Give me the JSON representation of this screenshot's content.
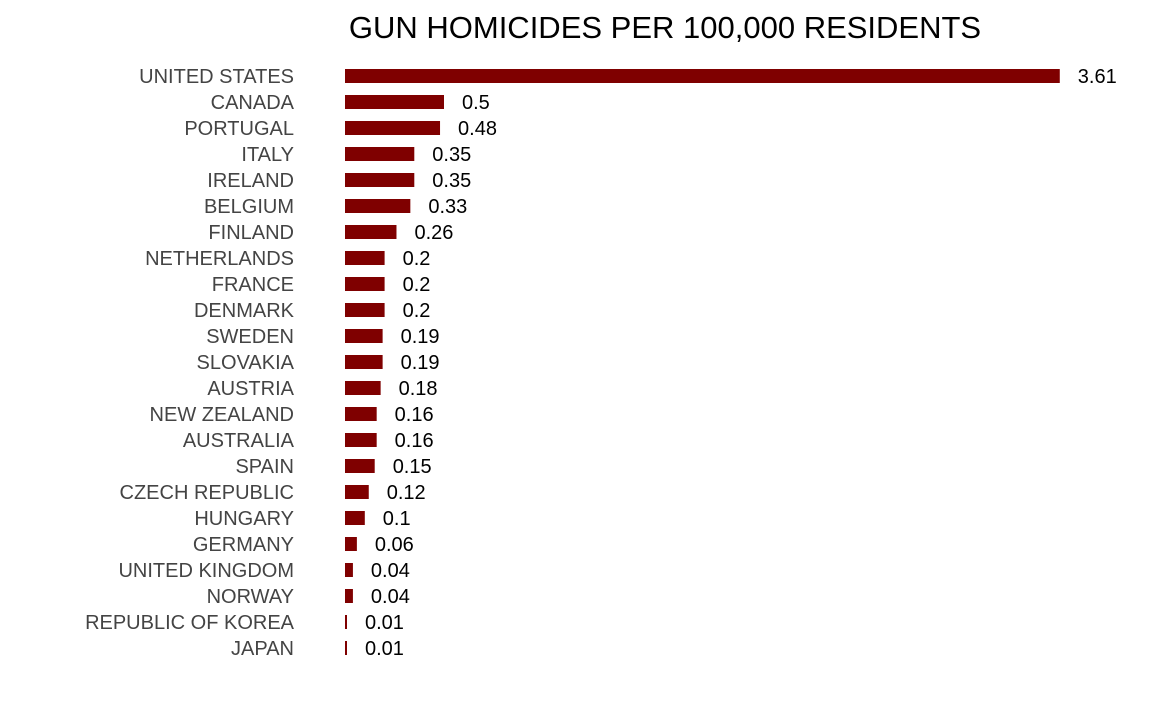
{
  "chart_data": {
    "type": "bar",
    "orientation": "horizontal",
    "title": "GUN HOMICIDES PER 100,000 RESIDENTS",
    "xlabel": "",
    "ylabel": "",
    "categories": [
      "UNITED STATES",
      "CANADA",
      "PORTUGAL",
      "ITALY",
      "IRELAND",
      "BELGIUM",
      "FINLAND",
      "NETHERLANDS",
      "FRANCE",
      "DENMARK",
      "SWEDEN",
      "SLOVAKIA",
      "AUSTRIA",
      "NEW ZEALAND",
      "AUSTRALIA",
      "SPAIN",
      "CZECH REPUBLIC",
      "HUNGARY",
      "GERMANY",
      "UNITED KINGDOM",
      "NORWAY",
      "REPUBLIC OF KOREA",
      "JAPAN"
    ],
    "values": [
      3.61,
      0.5,
      0.48,
      0.35,
      0.35,
      0.33,
      0.26,
      0.2,
      0.2,
      0.2,
      0.19,
      0.19,
      0.18,
      0.16,
      0.16,
      0.15,
      0.12,
      0.1,
      0.06,
      0.04,
      0.04,
      0.01,
      0.01
    ],
    "value_labels": [
      "3.61",
      "0.5",
      "0.48",
      "0.35",
      "0.35",
      "0.33",
      "0.26",
      "0.2",
      "0.2",
      "0.2",
      "0.19",
      "0.19",
      "0.18",
      "0.16",
      "0.16",
      "0.15",
      "0.12",
      "0.1",
      "0.06",
      "0.04",
      "0.04",
      "0.01",
      "0.01"
    ],
    "bar_color": "#7f0000",
    "grid": false,
    "legend": "none"
  }
}
